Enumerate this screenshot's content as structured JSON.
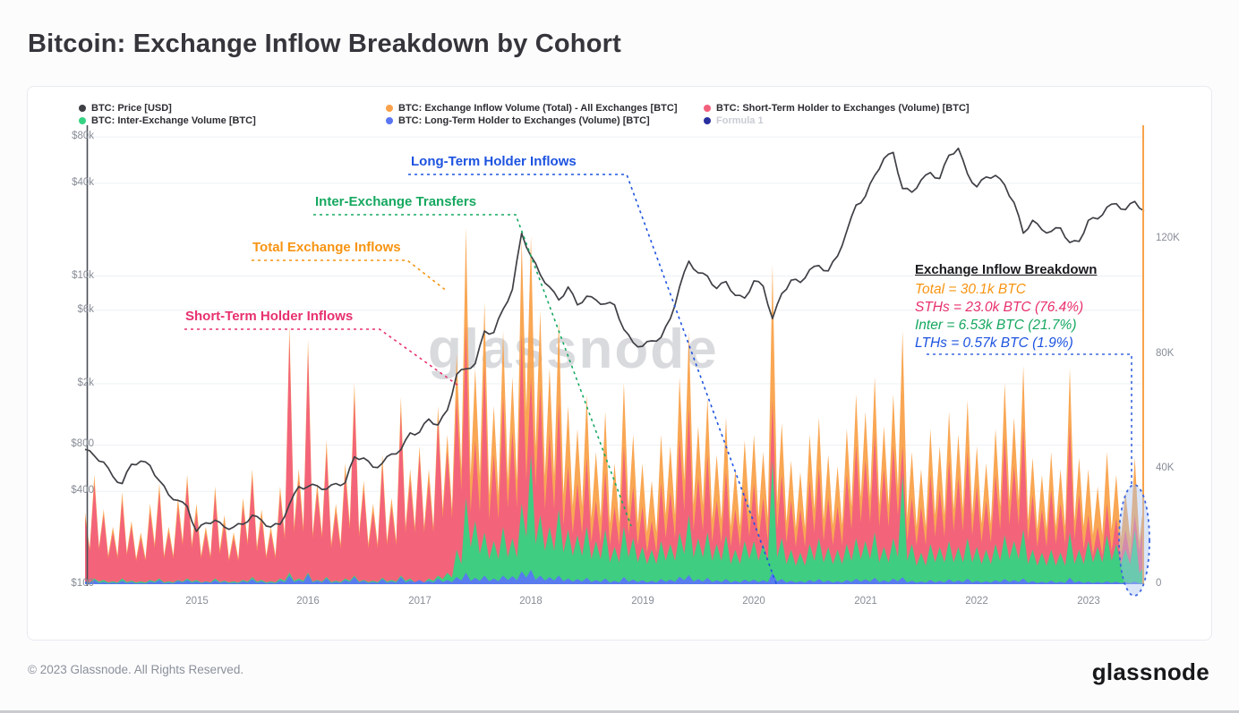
{
  "page": {
    "title": "Bitcoin: Exchange Inflow Breakdown by Cohort"
  },
  "watermark": "glassnode",
  "footer": {
    "copyright": "© 2023 Glassnode. All Rights Reserved.",
    "logo": "glassnode"
  },
  "colors": {
    "grid": "#eef0f3",
    "axis_line": "#4a4d54",
    "tick_text": "#888d97",
    "title_text": "#35353b",
    "card_border": "#e8eaee",
    "price_line": "#3f4046"
  },
  "legend": {
    "rows": [
      [
        {
          "id": "price",
          "label": "BTC: Price [USD]",
          "color": "#3f4046"
        },
        {
          "id": "total-inflow",
          "label": "BTC: Exchange Inflow Volume (Total) - All Exchanges [BTC]",
          "color": "#f9a24b"
        },
        {
          "id": "sth-inflow",
          "label": "BTC: Short-Term Holder to Exchanges (Volume) [BTC]",
          "color": "#f2607c"
        }
      ],
      [
        {
          "id": "inter-exchange",
          "label": "BTC: Inter-Exchange Volume [BTC]",
          "color": "#35d382"
        },
        {
          "id": "lth-inflow",
          "label": "BTC: Long-Term Holder to Exchanges (Volume) [BTC]",
          "color": "#5a76f3"
        },
        {
          "id": "formula-1",
          "label": "Formula 1",
          "color": "#2a2f9e",
          "muted": true
        }
      ]
    ]
  },
  "annotations": {
    "sth": {
      "text": "Short-Term Holder Inflows",
      "color": "#e8316d"
    },
    "total": {
      "text": "Total Exchange Inflows",
      "color": "#f79412"
    },
    "inter": {
      "text": "Inter-Exchange Transfers",
      "color": "#16a860"
    },
    "lth": {
      "text": "Long-Term Holder Inflows",
      "color": "#1d53e0"
    }
  },
  "breakdown": {
    "title": "Exchange Inflow Breakdown",
    "lines": [
      {
        "text": "Total = 30.1k BTC",
        "color": "#f79412"
      },
      {
        "text": "STHs = 23.0k BTC (76.4%)",
        "color": "#e8316d"
      },
      {
        "text": "Inter = 6.53k BTC (21.7%)",
        "color": "#16a860"
      },
      {
        "text": "LTHs = 0.57k BTC (1.9%)",
        "color": "#1d53e0"
      }
    ],
    "connector_color": "#3c66e0",
    "highlight_fill": "#aac3f0"
  },
  "chart_data": {
    "type": "area+line",
    "x_unit": "decimal_year",
    "x_start": 2014.0,
    "x_step": 0.0833333,
    "x_end": 2023.5,
    "x_ticks": [
      "2015",
      "2016",
      "2017",
      "2018",
      "2019",
      "2020",
      "2021",
      "2022",
      "2023"
    ],
    "left_axis": {
      "scale": "log",
      "ticks": [
        {
          "label": "$80k",
          "value": 80000
        },
        {
          "label": "$40k",
          "value": 40000
        },
        {
          "label": "$10k",
          "value": 10000
        },
        {
          "label": "$6k",
          "value": 6000
        },
        {
          "label": "$2k",
          "value": 2000
        },
        {
          "label": "$800",
          "value": 800
        },
        {
          "label": "$400",
          "value": 400
        },
        {
          "label": "$100",
          "value": 100
        }
      ]
    },
    "right_axis": {
      "scale": "linear",
      "values_in": "thousand_BTC",
      "ticks": [
        {
          "label": "120K",
          "value": 120
        },
        {
          "label": "80K",
          "value": 80
        },
        {
          "label": "40K",
          "value": 40
        },
        {
          "label": "0",
          "value": 0
        }
      ]
    },
    "price": {
      "name": "BTC: Price [USD]",
      "axis": "left",
      "color": "#3f4046",
      "values": [
        750,
        680,
        620,
        500,
        450,
        600,
        630,
        590,
        470,
        380,
        350,
        320,
        220,
        250,
        260,
        235,
        235,
        245,
        280,
        260,
        235,
        245,
        330,
        430,
        430,
        435,
        415,
        450,
        455,
        670,
        660,
        575,
        610,
        700,
        745,
        960,
        970,
        1180,
        1080,
        1350,
        2300,
        2500,
        2700,
        4400,
        4300,
        6100,
        8200,
        19000,
        13500,
        10200,
        8500,
        7000,
        8500,
        6500,
        7400,
        7000,
        6600,
        6500,
        4500,
        3700,
        3500,
        3800,
        4000,
        5300,
        8500,
        12500,
        10500,
        10000,
        8300,
        9200,
        7500,
        7200,
        9300,
        8600,
        5300,
        7700,
        9400,
        9100,
        11000,
        11700,
        10800,
        13500,
        19600,
        28900,
        33000,
        45000,
        58000,
        63500,
        37000,
        35000,
        42000,
        47000,
        43000,
        61000,
        67500,
        46000,
        38000,
        44000,
        45000,
        39000,
        30000,
        19000,
        23000,
        20000,
        19500,
        20500,
        16500,
        16800,
        23000,
        23500,
        28000,
        29500,
        27000,
        30500,
        26500
      ]
    },
    "series": [
      {
        "id": "total",
        "name": "BTC: Exchange Inflow Volume (Total) - All Exchanges [BTC]",
        "axis": "right",
        "color": "#f9a24b",
        "values": [
          25,
          38,
          26,
          20,
          32,
          22,
          18,
          28,
          35,
          20,
          30,
          38,
          28,
          20,
          34,
          24,
          18,
          30,
          40,
          26,
          20,
          34,
          90,
          40,
          85,
          35,
          50,
          28,
          42,
          70,
          36,
          28,
          45,
          30,
          65,
          40,
          48,
          40,
          62,
          52,
          80,
          124,
          75,
          98,
          62,
          88,
          72,
          120,
          121,
          95,
          75,
          92,
          62,
          54,
          66,
          46,
          60,
          42,
          70,
          52,
          42,
          36,
          52,
          48,
          72,
          88,
          55,
          65,
          45,
          58,
          40,
          50,
          52,
          46,
          111,
          56,
          43,
          39,
          52,
          58,
          45,
          41,
          54,
          66,
          60,
          72,
          55,
          66,
          88,
          46,
          40,
          54,
          48,
          60,
          52,
          64,
          48,
          42,
          54,
          70,
          58,
          76,
          44,
          38,
          46,
          40,
          75,
          44,
          40,
          34,
          46,
          38,
          32,
          44,
          30.1
        ]
      },
      {
        "id": "sth",
        "name": "BTC: Short-Term Holder to Exchanges (Volume) [BTC]",
        "axis": "right",
        "color": "#f2607c",
        "values": [
          23,
          35,
          24,
          18,
          29,
          20,
          16,
          25,
          32,
          18,
          27,
          35,
          25,
          18,
          31,
          21,
          16,
          27,
          37,
          23,
          18,
          31,
          86,
          36,
          81,
          32,
          46,
          25,
          38,
          65,
          33,
          25,
          41,
          27,
          60,
          36,
          45,
          36,
          57,
          46,
          65,
          90,
          50,
          76,
          45,
          65,
          53,
          87,
          72,
          68,
          52,
          63,
          41,
          35,
          44,
          29,
          39,
          27,
          48,
          34,
          27,
          22,
          35,
          32,
          51,
          61,
          37,
          45,
          29,
          39,
          26,
          33,
          35,
          30,
          64,
          38,
          29,
          26,
          36,
          40,
          30,
          27,
          38,
          48,
          43,
          52,
          40,
          48,
          48,
          30,
          27,
          38,
          33,
          43,
          37,
          46,
          34,
          29,
          38,
          51,
          41,
          55,
          31,
          26,
          33,
          28,
          55,
          31,
          24,
          20,
          28,
          23,
          19,
          24,
          23.0
        ]
      },
      {
        "id": "inter",
        "name": "BTC: Inter-Exchange Volume [BTC]",
        "axis": "right",
        "color": "#35d382",
        "values": [
          1,
          2,
          1.5,
          1,
          2,
          1.2,
          1,
          1.5,
          2,
          1,
          1.5,
          2,
          1.5,
          1,
          2,
          1.2,
          1,
          1.5,
          2.5,
          1.5,
          1,
          2,
          4,
          2,
          4,
          1.5,
          2.5,
          1.2,
          2,
          3,
          1.5,
          1.2,
          2.2,
          1.5,
          3,
          2,
          1,
          2,
          3,
          4,
          12,
          30,
          22,
          18,
          15,
          20,
          16,
          28,
          45,
          24,
          20,
          26,
          19,
          17,
          20,
          15,
          19,
          13,
          20,
          16,
          13,
          12,
          15,
          14,
          18,
          24,
          16,
          18,
          14,
          17,
          12,
          15,
          15,
          14,
          43,
          16,
          12,
          11,
          14,
          16,
          13,
          12,
          14,
          16,
          15,
          18,
          13,
          16,
          38,
          14,
          11,
          14,
          13,
          15,
          13,
          16,
          13,
          12,
          14,
          17,
          15,
          19,
          12,
          11,
          12,
          11,
          18,
          12,
          15,
          13,
          17,
          14,
          12,
          19,
          6.53
        ]
      },
      {
        "id": "lth",
        "name": "BTC: Long-Term Holder to Exchanges (Volume) [BTC]",
        "axis": "right",
        "color": "#5a76f3",
        "values": [
          1,
          1.5,
          0.8,
          0.6,
          1.2,
          0.8,
          0.5,
          1,
          1.5,
          0.6,
          1.2,
          1.5,
          1,
          0.8,
          1.4,
          0.9,
          0.6,
          1.1,
          1.8,
          1,
          0.6,
          1.3,
          3,
          1.4,
          3.5,
          1.2,
          2,
          0.8,
          1.5,
          2.5,
          1.2,
          0.8,
          1.8,
          1,
          2.5,
          1.3,
          1.5,
          1.2,
          2,
          1.5,
          2.5,
          4,
          2.2,
          3,
          2,
          3,
          2.8,
          4.5,
          5,
          3,
          2.5,
          3,
          2,
          1.8,
          2.2,
          1.5,
          2,
          1.2,
          2.5,
          1.6,
          1.4,
          1.2,
          1.8,
          1.6,
          2.6,
          3.2,
          1.8,
          2.2,
          1.4,
          1.8,
          1.2,
          1.6,
          1.6,
          1.4,
          4,
          1.8,
          1.2,
          1.1,
          1.5,
          1.8,
          1.3,
          1.1,
          1.5,
          1.9,
          1.7,
          2.2,
          1.4,
          1.9,
          2.4,
          1.2,
          1,
          1.5,
          1.2,
          1.7,
          1.3,
          1.9,
          1.2,
          1.1,
          1.4,
          1.8,
          1.5,
          2,
          1.1,
          0.9,
          1.2,
          0.9,
          2.2,
          1.1,
          0.9,
          0.8,
          1,
          0.9,
          0.7,
          0.9,
          0.57
        ]
      }
    ],
    "callout_values": {
      "total_kbtc": 30.1,
      "sth_kbtc": 23.0,
      "sth_pct": 76.4,
      "inter_kbtc": 6.53,
      "inter_pct": 21.7,
      "lth_kbtc": 0.57,
      "lth_pct": 1.9
    }
  }
}
